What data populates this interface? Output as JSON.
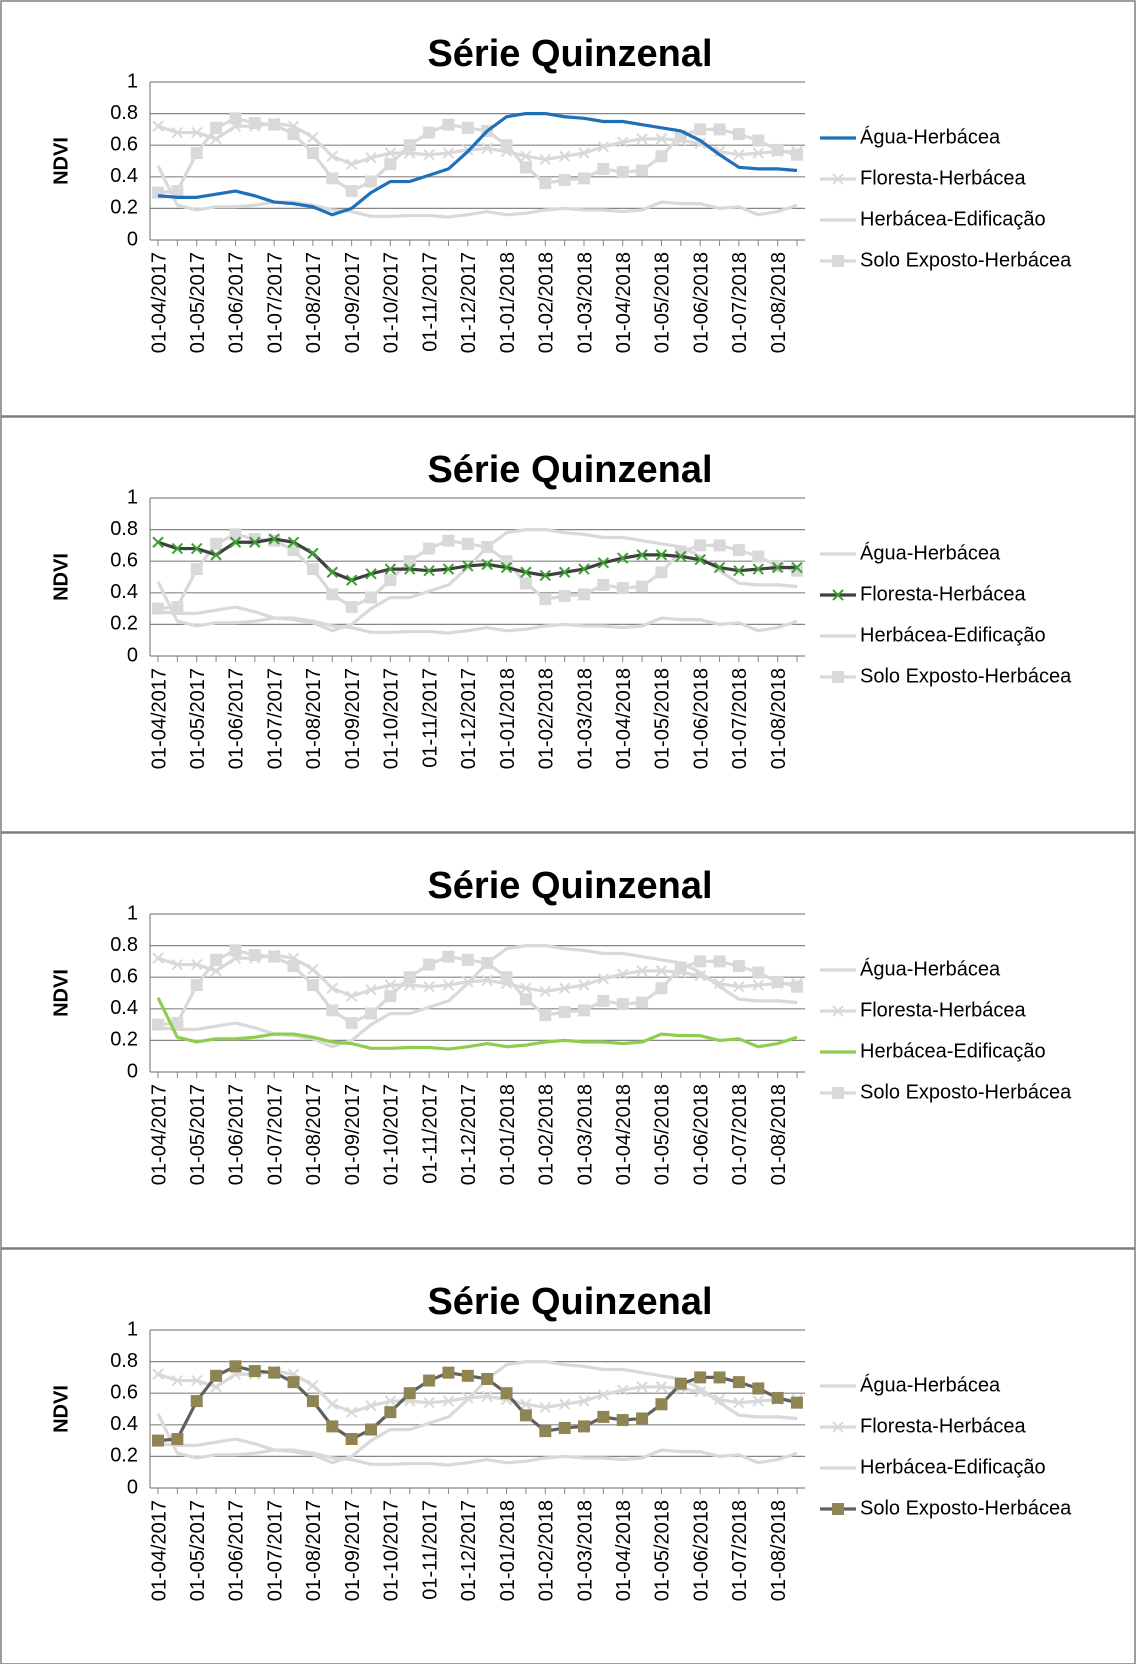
{
  "chart_data": [
    {
      "type": "line",
      "title": "Série Quinzenal",
      "ylabel": "NDVI",
      "categories": [
        "01-04/2017",
        null,
        "01-05/2017",
        null,
        "01-06/2017",
        null,
        "01-07/2017",
        null,
        "01-08/2017",
        null,
        "01-09/2017",
        null,
        "01-10/2017",
        null,
        "01-11/2017",
        null,
        "01-12/2017",
        null,
        "01-01/2018",
        null,
        "01-02/2018",
        null,
        "01-03/2018",
        null,
        "01-04/2018",
        null,
        "01-05/2018",
        null,
        "01-06/2018",
        null,
        "01-07/2018",
        null,
        "01-08/2018",
        null
      ],
      "ylim": [
        0,
        1
      ],
      "yticks": [
        0,
        0.2,
        0.4,
        0.6,
        0.8,
        1
      ],
      "grid": true,
      "series": [
        {
          "name": "Água-Herbácea",
          "color": "#1f6fb9",
          "marker": "none",
          "values": [
            0.28,
            0.27,
            0.27,
            0.29,
            0.31,
            0.28,
            0.24,
            0.23,
            0.21,
            0.16,
            0.2,
            0.3,
            0.37,
            0.37,
            0.41,
            0.45,
            0.56,
            0.69,
            0.78,
            0.8,
            0.8,
            0.78,
            0.77,
            0.75,
            0.75,
            0.73,
            0.71,
            0.69,
            0.63,
            0.54,
            0.46,
            0.45,
            0.45,
            0.44
          ]
        },
        {
          "name": "Floresta-Herbácea",
          "color": "#d9d9d9",
          "marker": "x",
          "marker_color": "#d9d9d9",
          "values": [
            0.72,
            0.68,
            0.68,
            0.64,
            0.72,
            0.72,
            0.74,
            0.72,
            0.65,
            0.53,
            0.48,
            0.52,
            0.55,
            0.55,
            0.54,
            0.55,
            0.57,
            0.58,
            0.56,
            0.53,
            0.51,
            0.53,
            0.55,
            0.59,
            0.62,
            0.64,
            0.64,
            0.63,
            0.61,
            0.56,
            0.54,
            0.55,
            0.56,
            0.56
          ]
        },
        {
          "name": "Herbácea-Edificação",
          "color": "#d9d9d9",
          "marker": "none",
          "values": [
            0.47,
            0.22,
            0.19,
            0.21,
            0.21,
            0.22,
            0.24,
            0.24,
            0.22,
            0.19,
            0.18,
            0.15,
            0.15,
            0.155,
            0.155,
            0.145,
            0.16,
            0.18,
            0.16,
            0.17,
            0.19,
            0.2,
            0.19,
            0.19,
            0.18,
            0.19,
            0.24,
            0.23,
            0.23,
            0.2,
            0.21,
            0.16,
            0.18,
            0.22
          ]
        },
        {
          "name": "Solo Exposto-Herbácea",
          "color": "#d9d9d9",
          "marker": "square",
          "marker_color": "#d9d9d9",
          "values": [
            0.3,
            0.31,
            0.55,
            0.71,
            0.77,
            0.74,
            0.73,
            0.67,
            0.55,
            0.39,
            0.31,
            0.37,
            0.48,
            0.6,
            0.68,
            0.73,
            0.71,
            0.69,
            0.6,
            0.46,
            0.36,
            0.38,
            0.39,
            0.45,
            0.43,
            0.44,
            0.53,
            0.66,
            0.7,
            0.7,
            0.67,
            0.63,
            0.57,
            0.54
          ]
        }
      ]
    },
    {
      "type": "line",
      "title": "Série Quinzenal",
      "ylabel": "NDVI",
      "categories": [
        "01-04/2017",
        null,
        "01-05/2017",
        null,
        "01-06/2017",
        null,
        "01-07/2017",
        null,
        "01-08/2017",
        null,
        "01-09/2017",
        null,
        "01-10/2017",
        null,
        "01-11/2017",
        null,
        "01-12/2017",
        null,
        "01-01/2018",
        null,
        "01-02/2018",
        null,
        "01-03/2018",
        null,
        "01-04/2018",
        null,
        "01-05/2018",
        null,
        "01-06/2018",
        null,
        "01-07/2018",
        null,
        "01-08/2018",
        null
      ],
      "ylim": [
        0,
        1
      ],
      "yticks": [
        0,
        0.2,
        0.4,
        0.6,
        0.8,
        1
      ],
      "grid": true,
      "series": [
        {
          "name": "Água-Herbácea",
          "color": "#d9d9d9",
          "marker": "none",
          "values": [
            0.28,
            0.27,
            0.27,
            0.29,
            0.31,
            0.28,
            0.24,
            0.23,
            0.21,
            0.16,
            0.2,
            0.3,
            0.37,
            0.37,
            0.41,
            0.45,
            0.56,
            0.69,
            0.78,
            0.8,
            0.8,
            0.78,
            0.77,
            0.75,
            0.75,
            0.73,
            0.71,
            0.69,
            0.63,
            0.54,
            0.46,
            0.45,
            0.45,
            0.44
          ]
        },
        {
          "name": "Floresta-Herbácea",
          "color": "#404040",
          "marker": "x",
          "marker_color": "#3aa02f",
          "values": [
            0.72,
            0.68,
            0.68,
            0.64,
            0.72,
            0.72,
            0.74,
            0.72,
            0.65,
            0.53,
            0.48,
            0.52,
            0.55,
            0.55,
            0.54,
            0.55,
            0.57,
            0.58,
            0.56,
            0.53,
            0.51,
            0.53,
            0.55,
            0.59,
            0.62,
            0.64,
            0.64,
            0.63,
            0.61,
            0.56,
            0.54,
            0.55,
            0.56,
            0.56
          ]
        },
        {
          "name": "Herbácea-Edificação",
          "color": "#d9d9d9",
          "marker": "none",
          "values": [
            0.47,
            0.22,
            0.19,
            0.21,
            0.21,
            0.22,
            0.24,
            0.24,
            0.22,
            0.19,
            0.18,
            0.15,
            0.15,
            0.155,
            0.155,
            0.145,
            0.16,
            0.18,
            0.16,
            0.17,
            0.19,
            0.2,
            0.19,
            0.19,
            0.18,
            0.19,
            0.24,
            0.23,
            0.23,
            0.2,
            0.21,
            0.16,
            0.18,
            0.22
          ]
        },
        {
          "name": "Solo Exposto-Herbácea",
          "color": "#d9d9d9",
          "marker": "square",
          "marker_color": "#d9d9d9",
          "values": [
            0.3,
            0.31,
            0.55,
            0.71,
            0.77,
            0.74,
            0.73,
            0.67,
            0.55,
            0.39,
            0.31,
            0.37,
            0.48,
            0.6,
            0.68,
            0.73,
            0.71,
            0.69,
            0.6,
            0.46,
            0.36,
            0.38,
            0.39,
            0.45,
            0.43,
            0.44,
            0.53,
            0.66,
            0.7,
            0.7,
            0.67,
            0.63,
            0.57,
            0.54
          ]
        }
      ]
    },
    {
      "type": "line",
      "title": "Série Quinzenal",
      "ylabel": "NDVI",
      "categories": [
        "01-04/2017",
        null,
        "01-05/2017",
        null,
        "01-06/2017",
        null,
        "01-07/2017",
        null,
        "01-08/2017",
        null,
        "01-09/2017",
        null,
        "01-10/2017",
        null,
        "01-11/2017",
        null,
        "01-12/2017",
        null,
        "01-01/2018",
        null,
        "01-02/2018",
        null,
        "01-03/2018",
        null,
        "01-04/2018",
        null,
        "01-05/2018",
        null,
        "01-06/2018",
        null,
        "01-07/2018",
        null,
        "01-08/2018",
        null
      ],
      "ylim": [
        0,
        1
      ],
      "yticks": [
        0,
        0.2,
        0.4,
        0.6,
        0.8,
        1
      ],
      "grid": true,
      "series": [
        {
          "name": "Água-Herbácea",
          "color": "#d9d9d9",
          "marker": "none",
          "values": [
            0.28,
            0.27,
            0.27,
            0.29,
            0.31,
            0.28,
            0.24,
            0.23,
            0.21,
            0.16,
            0.2,
            0.3,
            0.37,
            0.37,
            0.41,
            0.45,
            0.56,
            0.69,
            0.78,
            0.8,
            0.8,
            0.78,
            0.77,
            0.75,
            0.75,
            0.73,
            0.71,
            0.69,
            0.63,
            0.54,
            0.46,
            0.45,
            0.45,
            0.44
          ]
        },
        {
          "name": "Floresta-Herbácea",
          "color": "#d9d9d9",
          "marker": "x",
          "marker_color": "#d9d9d9",
          "values": [
            0.72,
            0.68,
            0.68,
            0.64,
            0.72,
            0.72,
            0.74,
            0.72,
            0.65,
            0.53,
            0.48,
            0.52,
            0.55,
            0.55,
            0.54,
            0.55,
            0.57,
            0.58,
            0.56,
            0.53,
            0.51,
            0.53,
            0.55,
            0.59,
            0.62,
            0.64,
            0.64,
            0.63,
            0.61,
            0.56,
            0.54,
            0.55,
            0.56,
            0.56
          ]
        },
        {
          "name": "Herbácea-Edificação",
          "color": "#8fcd4f",
          "marker": "none",
          "values": [
            0.47,
            0.22,
            0.19,
            0.21,
            0.21,
            0.22,
            0.24,
            0.24,
            0.22,
            0.19,
            0.18,
            0.15,
            0.15,
            0.155,
            0.155,
            0.145,
            0.16,
            0.18,
            0.16,
            0.17,
            0.19,
            0.2,
            0.19,
            0.19,
            0.18,
            0.19,
            0.24,
            0.23,
            0.23,
            0.2,
            0.21,
            0.16,
            0.18,
            0.22
          ]
        },
        {
          "name": "Solo Exposto-Herbácea",
          "color": "#d9d9d9",
          "marker": "square",
          "marker_color": "#d9d9d9",
          "values": [
            0.3,
            0.31,
            0.55,
            0.71,
            0.77,
            0.74,
            0.73,
            0.67,
            0.55,
            0.39,
            0.31,
            0.37,
            0.48,
            0.6,
            0.68,
            0.73,
            0.71,
            0.69,
            0.6,
            0.46,
            0.36,
            0.38,
            0.39,
            0.45,
            0.43,
            0.44,
            0.53,
            0.66,
            0.7,
            0.7,
            0.67,
            0.63,
            0.57,
            0.54
          ]
        }
      ]
    },
    {
      "type": "line",
      "title": "Série Quinzenal",
      "ylabel": "NDVI",
      "categories": [
        "01-04/2017",
        null,
        "01-05/2017",
        null,
        "01-06/2017",
        null,
        "01-07/2017",
        null,
        "01-08/2017",
        null,
        "01-09/2017",
        null,
        "01-10/2017",
        null,
        "01-11/2017",
        null,
        "01-12/2017",
        null,
        "01-01/2018",
        null,
        "01-02/2018",
        null,
        "01-03/2018",
        null,
        "01-04/2018",
        null,
        "01-05/2018",
        null,
        "01-06/2018",
        null,
        "01-07/2018",
        null,
        "01-08/2018",
        null
      ],
      "ylim": [
        0,
        1
      ],
      "yticks": [
        0,
        0.2,
        0.4,
        0.6,
        0.8,
        1
      ],
      "grid": true,
      "series": [
        {
          "name": "Água-Herbácea",
          "color": "#d9d9d9",
          "marker": "none",
          "values": [
            0.28,
            0.27,
            0.27,
            0.29,
            0.31,
            0.28,
            0.24,
            0.23,
            0.21,
            0.16,
            0.2,
            0.3,
            0.37,
            0.37,
            0.41,
            0.45,
            0.56,
            0.69,
            0.78,
            0.8,
            0.8,
            0.78,
            0.77,
            0.75,
            0.75,
            0.73,
            0.71,
            0.69,
            0.63,
            0.54,
            0.46,
            0.45,
            0.45,
            0.44
          ]
        },
        {
          "name": "Floresta-Herbácea",
          "color": "#d9d9d9",
          "marker": "x",
          "marker_color": "#d9d9d9",
          "values": [
            0.72,
            0.68,
            0.68,
            0.64,
            0.72,
            0.72,
            0.74,
            0.72,
            0.65,
            0.53,
            0.48,
            0.52,
            0.55,
            0.55,
            0.54,
            0.55,
            0.57,
            0.58,
            0.56,
            0.53,
            0.51,
            0.53,
            0.55,
            0.59,
            0.62,
            0.64,
            0.64,
            0.63,
            0.61,
            0.56,
            0.54,
            0.55,
            0.56,
            0.56
          ]
        },
        {
          "name": "Herbácea-Edificação",
          "color": "#d9d9d9",
          "marker": "none",
          "values": [
            0.47,
            0.22,
            0.19,
            0.21,
            0.21,
            0.22,
            0.24,
            0.24,
            0.22,
            0.19,
            0.18,
            0.15,
            0.15,
            0.155,
            0.155,
            0.145,
            0.16,
            0.18,
            0.16,
            0.17,
            0.19,
            0.2,
            0.19,
            0.19,
            0.18,
            0.19,
            0.24,
            0.23,
            0.23,
            0.2,
            0.21,
            0.16,
            0.18,
            0.22
          ]
        },
        {
          "name": "Solo Exposto-Herbácea",
          "color": "#606060",
          "marker": "square",
          "marker_color": "#8f8552",
          "values": [
            0.3,
            0.31,
            0.55,
            0.71,
            0.77,
            0.74,
            0.73,
            0.67,
            0.55,
            0.39,
            0.31,
            0.37,
            0.48,
            0.6,
            0.68,
            0.73,
            0.71,
            0.69,
            0.6,
            0.46,
            0.36,
            0.38,
            0.39,
            0.45,
            0.43,
            0.44,
            0.53,
            0.66,
            0.7,
            0.7,
            0.67,
            0.63,
            0.57,
            0.54
          ]
        }
      ]
    }
  ]
}
